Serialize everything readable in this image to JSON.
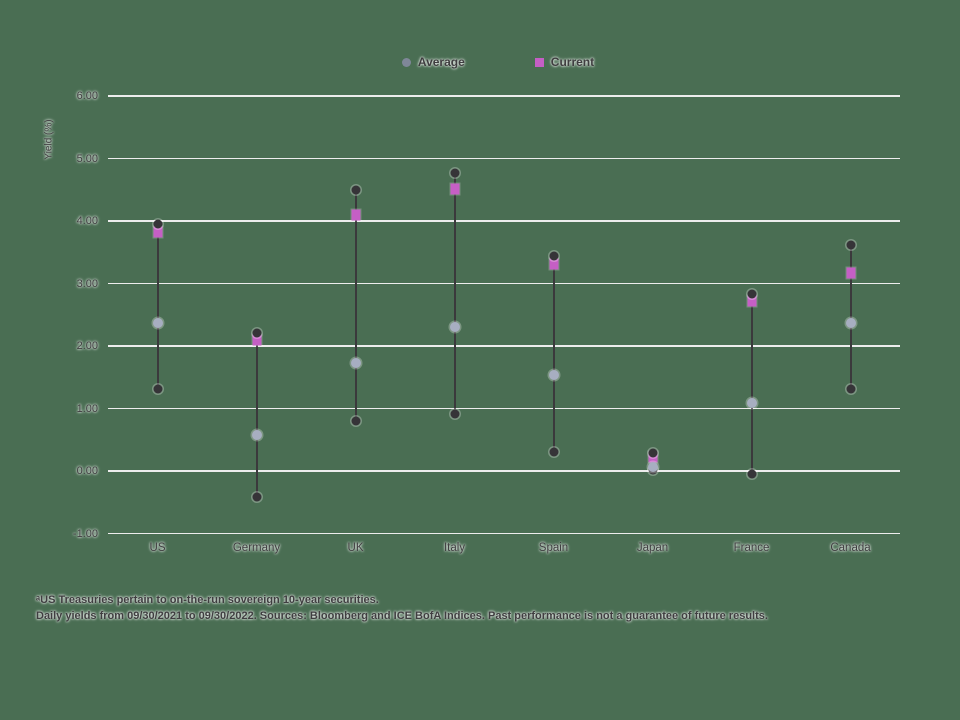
{
  "legend": {
    "items": [
      {
        "label": "Average",
        "marker": "circle",
        "color": "#7f8798"
      },
      {
        "label": "Current",
        "marker": "square",
        "color": "#c55fc5"
      }
    ]
  },
  "y_axis": {
    "title": "Yield (%)",
    "tick_labels": [
      "6.00",
      "5.00",
      "4.00",
      "3.00",
      "2.00",
      "1.00",
      "0.00",
      "-1.00"
    ],
    "max": 6,
    "min": -1,
    "step": 1
  },
  "footnotes": [
    "ᵃUS Treasuries pertain to on-the-run sovereign 10-year securities.",
    "Daily yields from 09/30/2021 to 09/30/2022. Sources: Bloomberg and ICE BofA Indices. Past performance is not a guarantee of future results."
  ],
  "colors": {
    "background": "#4a6e53",
    "gridline": "#ededed",
    "range_line": "#3b393c",
    "minmax_dot": "#363438",
    "average_dot": "#a7aec1",
    "current_square": "#c55fc5",
    "text": "#3f3e40"
  },
  "chart_data": {
    "type": "scatter",
    "subtype": "min-max range with average and current markers",
    "title": "",
    "ylabel": "Yield (%)",
    "ylim": [
      -1,
      6
    ],
    "grid": true,
    "legend_position": "top-center",
    "categories": [
      "US",
      "Germany",
      "UK",
      "Italy",
      "Spain",
      "Japan",
      "France",
      "Canada"
    ],
    "series": [
      {
        "name": "Max",
        "marker": "dark-dot",
        "values": [
          3.95,
          2.21,
          4.5,
          4.77,
          3.44,
          0.29,
          2.83,
          3.61
        ]
      },
      {
        "name": "Min",
        "marker": "dark-dot",
        "values": [
          1.31,
          -0.42,
          0.8,
          0.92,
          0.3,
          0.02,
          -0.05,
          1.31
        ]
      },
      {
        "name": "Average",
        "marker": "light-dot",
        "values": [
          2.37,
          0.58,
          1.73,
          2.31,
          1.54,
          0.07,
          1.09,
          2.37
        ]
      },
      {
        "name": "Current",
        "marker": "pink-square",
        "values": [
          3.83,
          2.1,
          4.1,
          4.52,
          3.31,
          0.22,
          2.72,
          3.17
        ]
      }
    ]
  }
}
